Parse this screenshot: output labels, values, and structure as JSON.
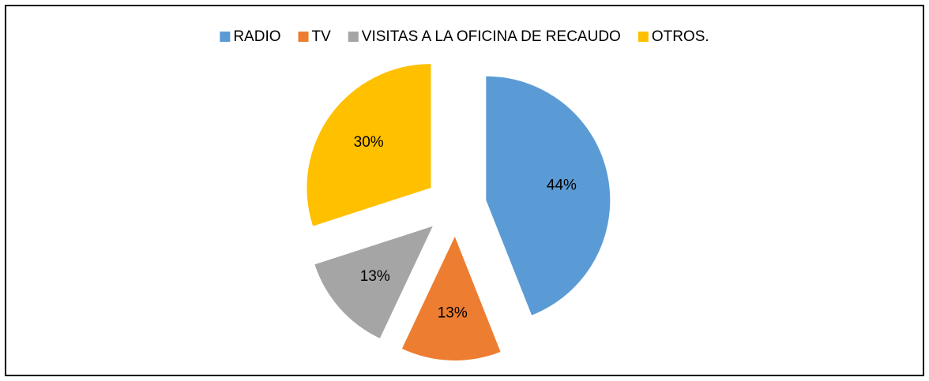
{
  "chart_data": {
    "type": "pie",
    "categories": [
      "RADIO",
      "TV",
      "VISITAS A LA OFICINA DE RECAUDO",
      "OTROS."
    ],
    "values": [
      44,
      13,
      13,
      30
    ],
    "value_labels": [
      "44%",
      "13%",
      "13%",
      "30%"
    ],
    "colors": [
      "#5b9bd5",
      "#ed7d31",
      "#a5a5a5",
      "#ffc000"
    ],
    "exploded": true,
    "legend": "top"
  }
}
